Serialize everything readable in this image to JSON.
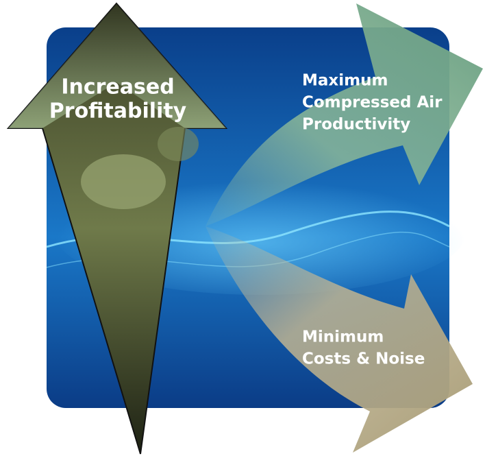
{
  "arrows": [
    {
      "label_lines": [
        "Increased",
        "Profitability"
      ]
    },
    {
      "label_lines": [
        "Maximum",
        "Compressed Air",
        "Productivity"
      ]
    },
    {
      "label_lines": [
        "Minimum",
        "Costs & Noise"
      ]
    }
  ]
}
